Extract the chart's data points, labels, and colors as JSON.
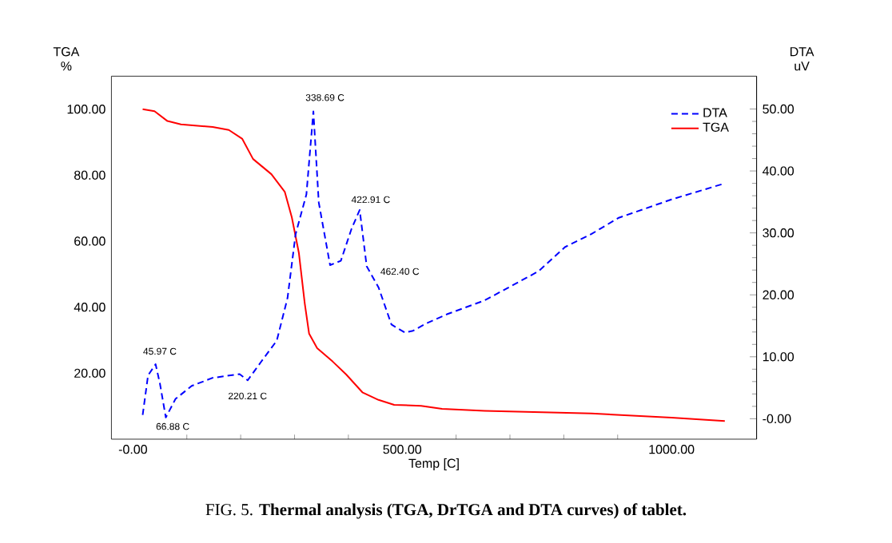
{
  "chart_data": {
    "type": "line",
    "xlabel": "Temp   [C]",
    "ylabel": "TGA %",
    "y2label": "DTA uV",
    "xlim": [
      -40,
      1158
    ],
    "ylim": [
      0,
      110
    ],
    "y2lim": [
      -3.3,
      55.3
    ],
    "xticks": [
      {
        "value": 0,
        "label": "-0.00"
      },
      {
        "value": 500,
        "label": "500.00"
      },
      {
        "value": 1000,
        "label": "1000.00"
      }
    ],
    "yticks": [
      {
        "value": 20,
        "label": "20.00"
      },
      {
        "value": 40,
        "label": "40.00"
      },
      {
        "value": 60,
        "label": "60.00"
      },
      {
        "value": 80,
        "label": "80.00"
      },
      {
        "value": 100,
        "label": "100.00"
      }
    ],
    "y2ticks": [
      {
        "value": 0,
        "label": "-0.00"
      },
      {
        "value": 10,
        "label": "10.00"
      },
      {
        "value": 20,
        "label": "20.00"
      },
      {
        "value": 30,
        "label": "30.00"
      },
      {
        "value": 40,
        "label": "40.00"
      },
      {
        "value": 50,
        "label": "50.00"
      }
    ],
    "legend": "top right",
    "marker": "none",
    "grid": false,
    "series": [
      {
        "name": "DTA",
        "color": "#0000ff",
        "axis": "y2",
        "line_style": "dashed",
        "x": [
          18,
          28,
          42,
          50,
          61,
          79,
          109,
          148,
          198,
          213,
          238,
          267,
          287,
          302,
          322,
          335,
          345,
          366,
          386,
          406,
          421,
          434,
          456,
          480,
          505,
          520,
          545,
          584,
          653,
          753,
          802,
          851,
          901,
          1000,
          1099
        ],
        "values": [
          0.6,
          7.0,
          8.8,
          5.7,
          0.2,
          3.2,
          5.3,
          6.6,
          7.2,
          6.2,
          9.2,
          12.6,
          19.5,
          29.8,
          36.2,
          49.6,
          34.9,
          24.8,
          25.5,
          30.7,
          33.7,
          24.6,
          21.2,
          15.2,
          13.9,
          14.2,
          15.4,
          16.9,
          19.1,
          23.8,
          27.7,
          29.8,
          32.4,
          35.4,
          38.0
        ]
      },
      {
        "name": "TGA",
        "color": "#ff0000",
        "line_style": "solid",
        "x": [
          18,
          40,
          64,
          89,
          148,
          178,
          203,
          223,
          257,
          282,
          295,
          308,
          319,
          327,
          342,
          371,
          396,
          426,
          456,
          485,
          535,
          574,
          653,
          851,
          1000,
          1099
        ],
        "values": [
          100,
          99.4,
          96.4,
          95.4,
          94.6,
          93.7,
          91,
          84.9,
          80.3,
          74.9,
          67.2,
          56.5,
          41.1,
          32,
          27.6,
          23.5,
          19.6,
          14.2,
          11.9,
          10.4,
          10.1,
          9.2,
          8.6,
          7.8,
          6.5,
          5.5
        ]
      }
    ],
    "annotations": [
      "45.97 C",
      "66.88 C",
      "220.21 C",
      "338.69 C",
      "422.91 C",
      "462.40 C",
      "FIG. 5. **Thermal analysis (TGA, DrTGA and DTA curves) of tablet.**"
    ]
  }
}
